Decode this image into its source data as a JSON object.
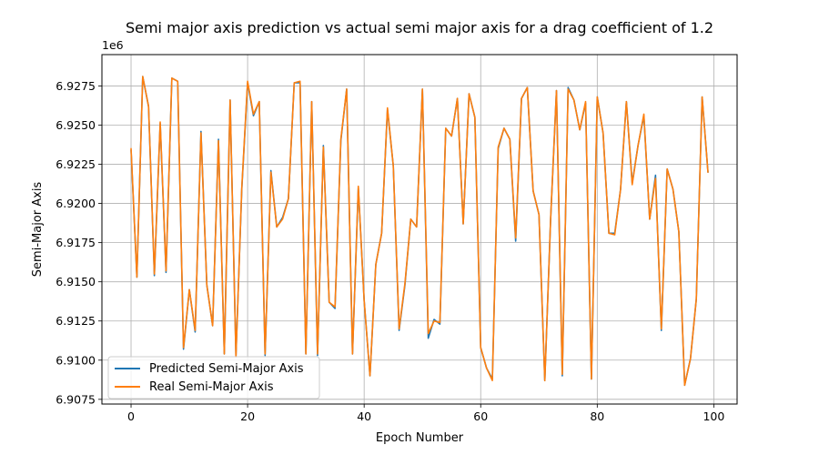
{
  "chart_data": {
    "type": "line",
    "title": "Semi major axis prediction vs actual semi major axis for a drag coefficient of 1.2",
    "xlabel": "Epoch Number",
    "ylabel": "Semi-Major Axis",
    "y_offset_label": "1e6",
    "xlim": [
      -5,
      104
    ],
    "ylim": [
      6.9072,
      6.9295
    ],
    "x_ticks": [
      0,
      20,
      40,
      60,
      80,
      100
    ],
    "x_tick_labels": [
      "0",
      "20",
      "40",
      "60",
      "80",
      "100"
    ],
    "y_ticks": [
      6.9075,
      6.91,
      6.9125,
      6.915,
      6.9175,
      6.92,
      6.9225,
      6.925,
      6.9275
    ],
    "y_tick_labels": [
      "6.9075",
      "6.9100",
      "6.9125",
      "6.9150",
      "6.9175",
      "6.9200",
      "6.9225",
      "6.9250",
      "6.9275"
    ],
    "grid": true,
    "legend_position": "lower-left",
    "x": [
      0,
      1,
      2,
      3,
      4,
      5,
      6,
      7,
      8,
      9,
      10,
      11,
      12,
      13,
      14,
      15,
      16,
      17,
      18,
      19,
      20,
      21,
      22,
      23,
      24,
      25,
      26,
      27,
      28,
      29,
      30,
      31,
      32,
      33,
      34,
      35,
      36,
      37,
      38,
      39,
      40,
      41,
      42,
      43,
      44,
      45,
      46,
      47,
      48,
      49,
      50,
      51,
      52,
      53,
      54,
      55,
      56,
      57,
      58,
      59,
      60,
      61,
      62,
      63,
      64,
      65,
      66,
      67,
      68,
      69,
      70,
      71,
      72,
      73,
      74,
      75,
      76,
      77,
      78,
      79,
      80,
      81,
      82,
      83,
      84,
      85,
      86,
      87,
      88,
      89,
      90,
      91,
      92,
      93,
      94,
      95,
      96,
      97,
      98,
      99
    ],
    "series": [
      {
        "name": "Predicted Semi-Major Axis",
        "color": "#1f77b4",
        "values": [
          6.9234,
          6.9153,
          6.9281,
          6.9262,
          6.9154,
          6.9251,
          6.9156,
          6.928,
          6.9278,
          6.9107,
          6.9145,
          6.9118,
          6.9246,
          6.9148,
          6.9122,
          6.9241,
          6.9104,
          6.9266,
          6.9103,
          6.9209,
          6.9277,
          6.9256,
          6.9265,
          6.9103,
          6.9221,
          6.9185,
          6.9191,
          6.9203,
          6.9277,
          6.9277,
          6.9104,
          6.9265,
          6.9103,
          6.9237,
          6.9137,
          6.9133,
          6.924,
          6.9273,
          6.9104,
          6.921,
          6.9138,
          6.909,
          6.9161,
          6.9181,
          6.926,
          6.9224,
          6.9119,
          6.9148,
          6.919,
          6.9185,
          6.9273,
          6.9114,
          6.9126,
          6.9123,
          6.9248,
          6.9243,
          6.9267,
          6.9187,
          6.927,
          6.9255,
          6.9108,
          6.9095,
          6.9088,
          6.9235,
          6.9248,
          6.9241,
          6.9176,
          6.9267,
          6.9274,
          6.9208,
          6.9193,
          6.9087,
          6.919,
          6.9272,
          6.909,
          6.9274,
          6.9266,
          6.9247,
          6.9264,
          6.9088,
          6.9268,
          6.9245,
          6.9181,
          6.9181,
          6.9209,
          6.9265,
          6.9213,
          6.9237,
          6.9256,
          6.919,
          6.9218,
          6.9119,
          6.9222,
          6.9209,
          6.9182,
          6.9084,
          6.9101,
          6.9139,
          6.9268,
          6.922
        ]
      },
      {
        "name": "Real Semi-Major Axis",
        "color": "#ff7f0e",
        "values": [
          6.9235,
          6.9153,
          6.9281,
          6.9262,
          6.9155,
          6.9252,
          6.9157,
          6.928,
          6.9278,
          6.9108,
          6.9145,
          6.9119,
          6.9245,
          6.9148,
          6.9122,
          6.924,
          6.9104,
          6.9266,
          6.9102,
          6.921,
          6.9278,
          6.9257,
          6.9265,
          6.9104,
          6.922,
          6.9185,
          6.919,
          6.9203,
          6.9277,
          6.9278,
          6.9104,
          6.9265,
          6.9104,
          6.9236,
          6.9137,
          6.9134,
          6.9241,
          6.9273,
          6.9104,
          6.9211,
          6.9138,
          6.909,
          6.9161,
          6.9181,
          6.9261,
          6.9224,
          6.912,
          6.9149,
          6.919,
          6.9185,
          6.9273,
          6.9117,
          6.9125,
          6.9124,
          6.9248,
          6.9243,
          6.9267,
          6.9187,
          6.927,
          6.9255,
          6.9108,
          6.9095,
          6.9087,
          6.9236,
          6.9248,
          6.9241,
          6.9178,
          6.9267,
          6.9274,
          6.9208,
          6.9193,
          6.9087,
          6.919,
          6.9272,
          6.9091,
          6.9273,
          6.9266,
          6.9247,
          6.9265,
          6.9088,
          6.9268,
          6.9245,
          6.9181,
          6.918,
          6.9209,
          6.9265,
          6.9212,
          6.9237,
          6.9257,
          6.919,
          6.9216,
          6.912,
          6.9222,
          6.9209,
          6.9182,
          6.9084,
          6.9101,
          6.9139,
          6.9268,
          6.922
        ]
      }
    ]
  }
}
